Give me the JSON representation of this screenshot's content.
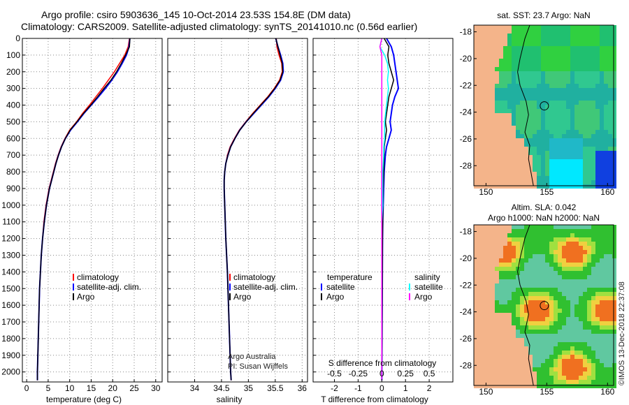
{
  "header": {
    "line1": "Argo profile: csiro 5903636_145 10-Oct-2014 23.53S 154.8E (DM data)",
    "line2": "Climatology: CARS2009. Satellite-adjusted climatology: synTS_20141010.nc (0.56d earlier)"
  },
  "credits": {
    "org": "Argo Australia",
    "pi": "PI: Susan Wijffels",
    "imos": "©IMOS 13-Dec-2018 22:37:08"
  },
  "colors": {
    "climatology": "#ff0000",
    "satellite": "#0000ff",
    "argo": "#000000",
    "s_satellite": "#00ffff",
    "s_argo": "#ff00ff",
    "land": "#f4b48a",
    "ssh_deep": "#2050c8"
  },
  "chart_data": [
    {
      "type": "line",
      "name": "temperature-profile",
      "xlabel": "temperature (deg C)",
      "xlim": [
        -1,
        31.5
      ],
      "ylim": [
        0,
        2060
      ],
      "xticks": [
        0,
        5,
        10,
        15,
        20,
        25,
        30
      ],
      "yticks": [
        0,
        100,
        200,
        300,
        400,
        500,
        600,
        700,
        800,
        900,
        1000,
        1100,
        1200,
        1300,
        1400,
        1500,
        1600,
        1700,
        1800,
        1900,
        2000
      ],
      "grid": true,
      "legend": [
        "climatology",
        "satellite-adj. clim.",
        "Argo"
      ],
      "depth": [
        0,
        50,
        100,
        150,
        200,
        250,
        300,
        350,
        400,
        450,
        500,
        550,
        600,
        650,
        700,
        750,
        800,
        850,
        900,
        1000,
        1100,
        1200,
        1300,
        1400,
        1500,
        1600,
        1700,
        1800,
        1900,
        2000,
        2050
      ],
      "series": [
        {
          "name": "climatology",
          "values": [
            23.9,
            23.6,
            22.8,
            21.6,
            20.4,
            19.0,
            17.6,
            16.1,
            14.6,
            13.0,
            11.6,
            10.0,
            8.9,
            8.0,
            7.3,
            6.7,
            6.2,
            5.7,
            5.2,
            4.5,
            4.0,
            3.7,
            3.4,
            3.2,
            3.0,
            2.9,
            2.8,
            2.7,
            2.6,
            2.5,
            2.5
          ]
        },
        {
          "name": "satellite-adj. clim.",
          "values": [
            24.0,
            23.8,
            23.2,
            22.2,
            21.1,
            19.8,
            18.3,
            16.7,
            15.0,
            13.3,
            11.8,
            10.2,
            9.0,
            8.1,
            7.4,
            6.8,
            6.3,
            5.8,
            5.3,
            4.6,
            4.1,
            3.7,
            3.4,
            3.2,
            3.0,
            2.9,
            2.8,
            2.7,
            2.6,
            2.5,
            2.5
          ]
        },
        {
          "name": "Argo",
          "values": [
            24.0,
            23.9,
            23.0,
            22.0,
            20.9,
            19.6,
            18.0,
            16.5,
            14.9,
            13.2,
            11.7,
            10.1,
            9.0,
            8.1,
            7.4,
            6.8,
            6.3,
            5.8,
            5.3,
            4.6,
            4.1,
            3.7,
            3.4,
            3.2,
            3.0,
            2.9,
            2.8,
            2.7,
            2.6,
            2.5,
            2.5
          ]
        }
      ]
    },
    {
      "type": "line",
      "name": "salinity-profile",
      "xlabel": "salinity",
      "xlim": [
        33.5,
        36.1
      ],
      "ylim": [
        0,
        2060
      ],
      "xticks": [
        34,
        34.5,
        35,
        35.5,
        36
      ],
      "grid": true,
      "legend": [
        "climatology",
        "satellite-adj. clim.",
        "Argo"
      ],
      "depth": [
        0,
        50,
        100,
        150,
        200,
        250,
        300,
        350,
        400,
        450,
        500,
        550,
        600,
        650,
        700,
        750,
        800,
        850,
        900,
        1000,
        1200,
        1400,
        1600,
        1800,
        2000,
        2050
      ],
      "series": [
        {
          "name": "climatology",
          "values": [
            35.52,
            35.53,
            35.57,
            35.62,
            35.63,
            35.58,
            35.48,
            35.36,
            35.22,
            35.08,
            34.95,
            34.83,
            34.74,
            34.66,
            34.61,
            34.58,
            34.56,
            34.55,
            34.55,
            34.56,
            34.58,
            34.61,
            34.63,
            34.65,
            34.67,
            34.68
          ]
        },
        {
          "name": "satellite-adj. clim.",
          "values": [
            35.51,
            35.55,
            35.6,
            35.64,
            35.65,
            35.6,
            35.5,
            35.38,
            35.24,
            35.1,
            34.96,
            34.84,
            34.75,
            34.67,
            34.62,
            34.58,
            34.56,
            34.55,
            34.55,
            34.56,
            34.58,
            34.61,
            34.63,
            34.65,
            34.67,
            34.68
          ]
        },
        {
          "name": "Argo",
          "values": [
            35.51,
            35.55,
            35.59,
            35.63,
            35.64,
            35.59,
            35.49,
            35.37,
            35.23,
            35.09,
            34.96,
            34.84,
            34.75,
            34.67,
            34.62,
            34.58,
            34.56,
            34.55,
            34.55,
            34.56,
            34.58,
            34.61,
            34.63,
            34.65,
            34.67,
            34.68
          ]
        }
      ]
    },
    {
      "type": "line",
      "name": "difference-profile",
      "xlabel": "T difference from climatology",
      "xlabel_top": "S difference from climatology",
      "xlim": [
        -2.9,
        3.0
      ],
      "ylim": [
        0,
        2060
      ],
      "xticks": [
        -2,
        -1,
        0,
        1,
        2
      ],
      "xtick_labels_top": [
        "-0.5",
        "-0.25",
        "0",
        "0.25",
        "0.5"
      ],
      "grid": true,
      "legend_left": {
        "title": "temperature",
        "items": [
          "satellite",
          "Argo"
        ]
      },
      "legend_right": {
        "title": "salinity",
        "items": [
          "satellite",
          "Argo"
        ]
      },
      "depth": [
        0,
        50,
        100,
        150,
        200,
        250,
        300,
        350,
        400,
        450,
        500,
        550,
        600,
        650,
        700,
        800,
        900,
        1000,
        1100,
        1200,
        1500,
        1800,
        2000,
        2050
      ],
      "series": [
        {
          "name": "temperature satellite",
          "values": [
            0.2,
            0.4,
            0.5,
            0.55,
            0.6,
            0.65,
            0.7,
            0.55,
            0.45,
            0.4,
            0.35,
            0.4,
            0.3,
            0.2,
            0.15,
            0.1,
            0.08,
            0.06,
            0.04,
            0.03,
            0.02,
            0.01,
            0.0,
            0.0
          ]
        },
        {
          "name": "temperature Argo",
          "values": [
            0.1,
            0.3,
            0.25,
            0.3,
            0.4,
            0.5,
            0.4,
            0.3,
            0.25,
            0.2,
            0.15,
            0.2,
            0.15,
            0.1,
            0.1,
            0.08,
            0.06,
            0.05,
            0.04,
            0.03,
            0.02,
            0.01,
            0.0,
            0.0
          ]
        },
        {
          "name": "salinity satellite",
          "values": [
            0.0,
            -0.02,
            0.03,
            0.06,
            0.07,
            0.06,
            0.07,
            0.06,
            0.05,
            0.04,
            0.03,
            0.03,
            0.03,
            0.02,
            0.02,
            0.01,
            0.01,
            0.01,
            0.0,
            0.0,
            0.0,
            0.0,
            0.0,
            0.0
          ]
        },
        {
          "name": "salinity Argo",
          "values": [
            0.0,
            -0.02,
            0.0,
            0.0,
            0.0,
            0.0,
            0.0,
            0.0,
            0.0,
            0.0,
            0.0,
            0.0,
            0.0,
            0.0,
            0.0,
            0.0,
            0.0,
            0.0,
            0.0,
            0.0,
            0.0,
            0.0,
            0.0,
            0.0
          ]
        }
      ]
    },
    {
      "type": "heatmap",
      "name": "sst-map",
      "title": "sat. SST: 23.7 Argo: NaN",
      "xlim": [
        149,
        160.5
      ],
      "ylim": [
        -29.5,
        -17.5
      ],
      "xticks": [
        150,
        155,
        160
      ],
      "yticks": [
        -18,
        -20,
        -22,
        -24,
        -26,
        -28
      ],
      "argo_marker": [
        154.8,
        -23.53
      ]
    },
    {
      "type": "heatmap",
      "name": "sla-map",
      "title": "Altim. SLA: 0.042",
      "subtitle": "Argo h1000: NaN h2000: NaN",
      "xlim": [
        149,
        160.5
      ],
      "ylim": [
        -29.5,
        -17.5
      ],
      "xticks": [
        150,
        155,
        160
      ],
      "yticks": [
        -18,
        -20,
        -22,
        -24,
        -26,
        -28
      ],
      "argo_marker": [
        154.8,
        -23.53
      ]
    }
  ]
}
